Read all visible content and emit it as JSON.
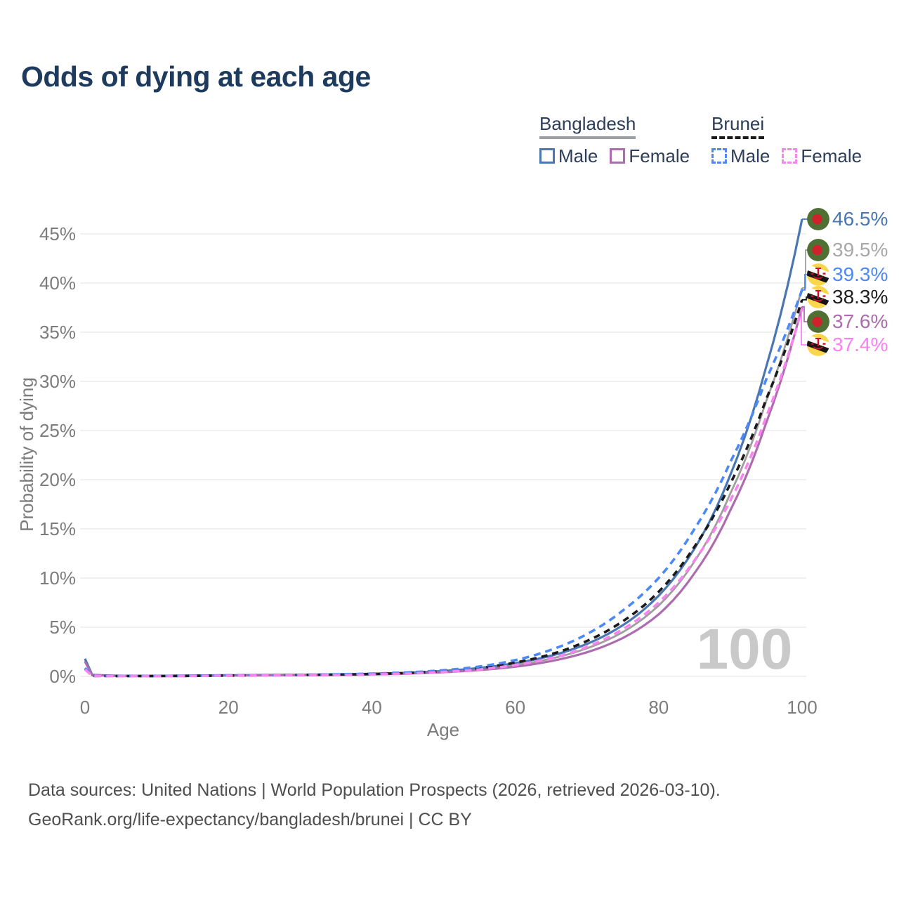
{
  "title": "Odds of dying at each age",
  "legend": {
    "bangladesh": {
      "name": "Bangladesh",
      "male_label": "Male",
      "female_label": "Female"
    },
    "brunei": {
      "name": "Brunei",
      "male_label": "Male",
      "female_label": "Female"
    }
  },
  "chart_data": {
    "type": "line",
    "title": "Odds of dying at each age",
    "xlabel": "Age",
    "ylabel": "Probability of dying",
    "xlim": [
      0,
      100
    ],
    "ylim": [
      0,
      45
    ],
    "x_ticks": [
      "0",
      "20",
      "40",
      "60",
      "80",
      "100"
    ],
    "y_ticks": [
      "0%",
      "5%",
      "10%",
      "15%",
      "20%",
      "25%",
      "30%",
      "35%",
      "40%",
      "45%"
    ],
    "grid": "horizontal",
    "legend_position": "top-right",
    "watermark": "100",
    "units": "percent probability of dying at each age",
    "series": [
      {
        "name": "Bangladesh",
        "sex": "both",
        "flag": "bd",
        "color": "#9e9e9e",
        "dash": null,
        "end_value": 39.5,
        "end_label": "39.5%",
        "label_color": "#a8a8a8",
        "points": [
          [
            0,
            1.65
          ],
          [
            1,
            0.14
          ],
          [
            5,
            0.05
          ],
          [
            10,
            0.05
          ],
          [
            15,
            0.08
          ],
          [
            20,
            0.1
          ],
          [
            25,
            0.12
          ],
          [
            30,
            0.14
          ],
          [
            35,
            0.18
          ],
          [
            40,
            0.23
          ],
          [
            45,
            0.32
          ],
          [
            50,
            0.48
          ],
          [
            55,
            0.74
          ],
          [
            60,
            1.15
          ],
          [
            65,
            1.8
          ],
          [
            70,
            2.85
          ],
          [
            75,
            4.5
          ],
          [
            80,
            7.2
          ],
          [
            85,
            11.7
          ],
          [
            90,
            18.6
          ],
          [
            95,
            28.0
          ],
          [
            100,
            39.5
          ]
        ]
      },
      {
        "name": "Bangladesh Male",
        "sex": "male",
        "flag": "bd",
        "color": "#4a77b4",
        "dash": null,
        "end_value": 46.5,
        "end_label": "46.5%",
        "label_color": "#4a77b4",
        "points": [
          [
            0,
            1.8
          ],
          [
            1,
            0.16
          ],
          [
            5,
            0.06
          ],
          [
            10,
            0.06
          ],
          [
            15,
            0.09
          ],
          [
            20,
            0.12
          ],
          [
            25,
            0.14
          ],
          [
            30,
            0.16
          ],
          [
            35,
            0.2
          ],
          [
            40,
            0.26
          ],
          [
            45,
            0.36
          ],
          [
            50,
            0.55
          ],
          [
            55,
            0.85
          ],
          [
            60,
            1.35
          ],
          [
            65,
            2.1
          ],
          [
            70,
            3.3
          ],
          [
            75,
            5.2
          ],
          [
            80,
            8.2
          ],
          [
            85,
            13.0
          ],
          [
            90,
            20.5
          ],
          [
            95,
            31.5
          ],
          [
            100,
            46.5
          ]
        ]
      },
      {
        "name": "Bangladesh Female",
        "sex": "female",
        "flag": "bd",
        "color": "#ad6cad",
        "dash": null,
        "end_value": 37.6,
        "end_label": "37.6%",
        "label_color": "#aa6cac",
        "points": [
          [
            0,
            1.5
          ],
          [
            1,
            0.12
          ],
          [
            5,
            0.05
          ],
          [
            10,
            0.04
          ],
          [
            15,
            0.06
          ],
          [
            20,
            0.08
          ],
          [
            25,
            0.1
          ],
          [
            30,
            0.12
          ],
          [
            35,
            0.15
          ],
          [
            40,
            0.2
          ],
          [
            45,
            0.28
          ],
          [
            50,
            0.42
          ],
          [
            55,
            0.64
          ],
          [
            60,
            0.98
          ],
          [
            65,
            1.55
          ],
          [
            70,
            2.45
          ],
          [
            75,
            3.9
          ],
          [
            80,
            6.3
          ],
          [
            85,
            10.5
          ],
          [
            90,
            16.9
          ],
          [
            95,
            25.8
          ],
          [
            100,
            37.6
          ]
        ]
      },
      {
        "name": "Brunei",
        "sex": "both",
        "flag": "bn",
        "color": "#1a1a1a",
        "dash": "9 7",
        "end_value": 38.3,
        "end_label": "38.3%",
        "label_color": "#1f1f1f",
        "points": [
          [
            0,
            0.8
          ],
          [
            1,
            0.05
          ],
          [
            5,
            0.03
          ],
          [
            10,
            0.03
          ],
          [
            15,
            0.05
          ],
          [
            20,
            0.08
          ],
          [
            25,
            0.11
          ],
          [
            30,
            0.14
          ],
          [
            35,
            0.18
          ],
          [
            40,
            0.24
          ],
          [
            45,
            0.34
          ],
          [
            50,
            0.53
          ],
          [
            55,
            0.85
          ],
          [
            60,
            1.4
          ],
          [
            65,
            2.25
          ],
          [
            70,
            3.6
          ],
          [
            75,
            5.6
          ],
          [
            80,
            8.6
          ],
          [
            85,
            13.2
          ],
          [
            90,
            19.6
          ],
          [
            95,
            28.2
          ],
          [
            100,
            38.3
          ]
        ]
      },
      {
        "name": "Brunei Male",
        "sex": "male",
        "flag": "bn",
        "color": "#4d88f7",
        "dash": "10 7",
        "end_value": 39.3,
        "end_label": "39.3%",
        "label_color": "#4d88f7",
        "points": [
          [
            0,
            0.85
          ],
          [
            1,
            0.06
          ],
          [
            5,
            0.03
          ],
          [
            10,
            0.03
          ],
          [
            15,
            0.06
          ],
          [
            20,
            0.1
          ],
          [
            25,
            0.13
          ],
          [
            30,
            0.16
          ],
          [
            35,
            0.21
          ],
          [
            40,
            0.28
          ],
          [
            45,
            0.4
          ],
          [
            50,
            0.62
          ],
          [
            55,
            1.0
          ],
          [
            60,
            1.65
          ],
          [
            65,
            2.7
          ],
          [
            70,
            4.3
          ],
          [
            75,
            6.7
          ],
          [
            80,
            10.0
          ],
          [
            85,
            15.0
          ],
          [
            90,
            21.8
          ],
          [
            95,
            30.2
          ],
          [
            100,
            39.3
          ]
        ]
      },
      {
        "name": "Brunei Female",
        "sex": "female",
        "flag": "bn",
        "color": "#f884f0",
        "dash": "10 7",
        "end_value": 37.4,
        "end_label": "37.4%",
        "label_color": "#fb80f2",
        "points": [
          [
            0,
            0.7
          ],
          [
            1,
            0.05
          ],
          [
            5,
            0.02
          ],
          [
            10,
            0.02
          ],
          [
            15,
            0.04
          ],
          [
            20,
            0.07
          ],
          [
            25,
            0.09
          ],
          [
            30,
            0.11
          ],
          [
            35,
            0.14
          ],
          [
            40,
            0.19
          ],
          [
            45,
            0.28
          ],
          [
            50,
            0.44
          ],
          [
            55,
            0.7
          ],
          [
            60,
            1.15
          ],
          [
            65,
            1.85
          ],
          [
            70,
            3.0
          ],
          [
            75,
            4.8
          ],
          [
            80,
            7.5
          ],
          [
            85,
            11.8
          ],
          [
            90,
            17.9
          ],
          [
            95,
            26.4
          ],
          [
            100,
            37.4
          ]
        ]
      }
    ],
    "flag_colors": {
      "bangladesh_green": "#4e7032",
      "bangladesh_red": "#d0212d",
      "brunei_yellow": "#f9d64b",
      "brunei_white": "#ffffff",
      "brunei_black": "#161616",
      "brunei_red": "#c9132c"
    }
  },
  "footer": {
    "line1": "Data sources: United Nations | World Population Prospects (2026, retrieved 2026-03-10).",
    "line2": "GeoRank.org/life-expectancy/bangladesh/brunei | CC BY"
  }
}
